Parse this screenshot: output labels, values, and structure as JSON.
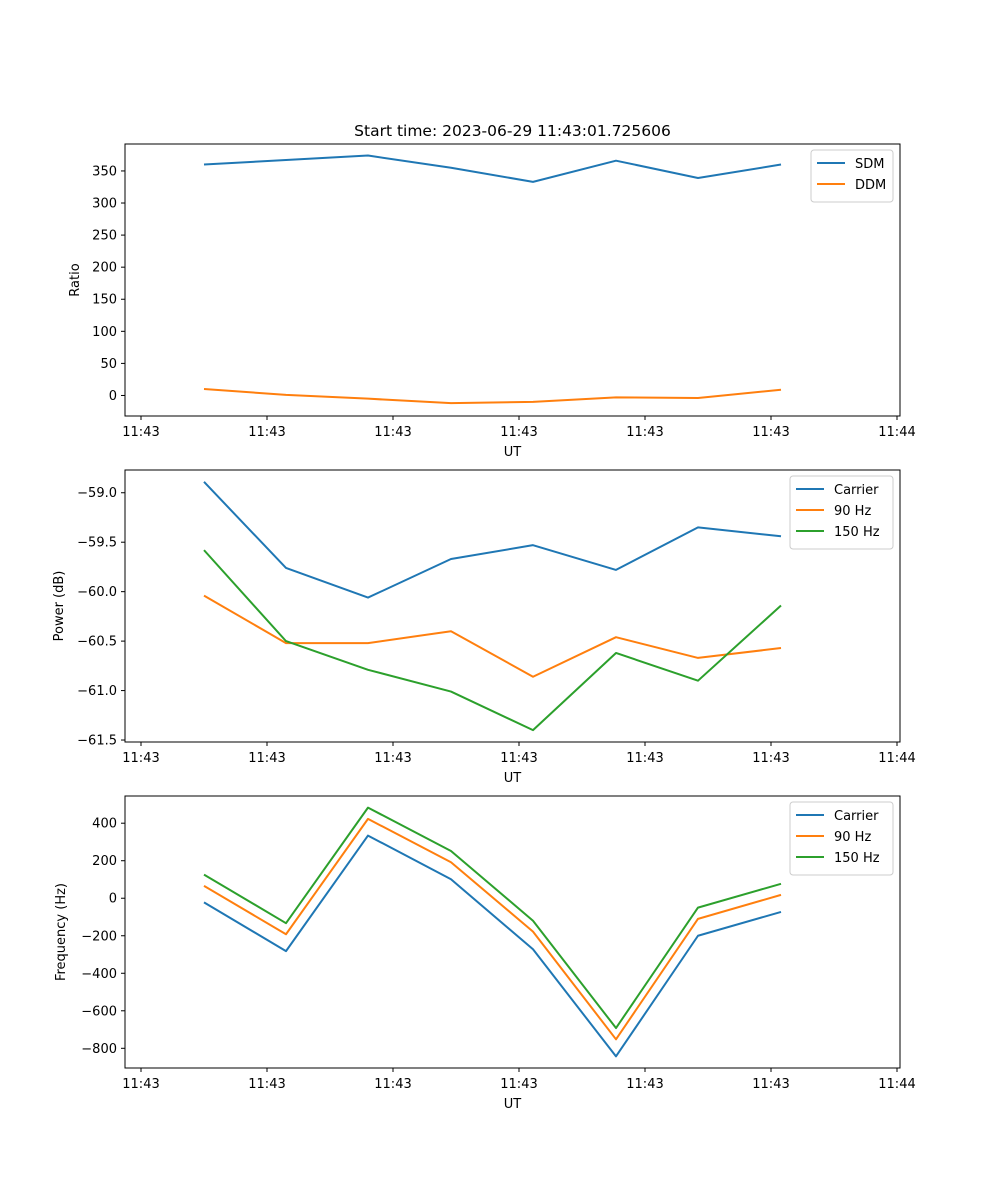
{
  "figure": {
    "title": "Start time: 2023-06-29 11:43:01.725606"
  },
  "colors": {
    "blue": "#1f77b4",
    "orange": "#ff7f0e",
    "green": "#2ca02c"
  },
  "chart_data": [
    {
      "type": "line",
      "title": "Start time: 2023-06-29 11:43:01.725606",
      "xlabel": "UT",
      "ylabel": "Ratio",
      "x_tick_labels": [
        "11:43",
        "11:43",
        "11:43",
        "11:43",
        "11:43",
        "11:43",
        "11:43",
        "11:44"
      ],
      "x_points": 8,
      "ylim": [
        -32,
        392
      ],
      "yticks": [
        0,
        50,
        100,
        150,
        200,
        250,
        300,
        350
      ],
      "grid": false,
      "legend_position": "upper right",
      "series": [
        {
          "name": "SDM",
          "color": "blue",
          "values": [
            360,
            367,
            374,
            355,
            333,
            366,
            339,
            360
          ]
        },
        {
          "name": "DDM",
          "color": "orange",
          "values": [
            10,
            1,
            -5,
            -12,
            -10,
            -3,
            -4,
            9
          ]
        }
      ]
    },
    {
      "type": "line",
      "title": "",
      "xlabel": "UT",
      "ylabel": "Power (dB)",
      "x_tick_labels": [
        "11:43",
        "11:43",
        "11:43",
        "11:43",
        "11:43",
        "11:43",
        "11:43",
        "11:44"
      ],
      "x_points": 8,
      "ylim": [
        -61.52,
        -58.77
      ],
      "yticks": [
        -59.0,
        -59.5,
        -60.0,
        -60.5,
        -61.0,
        -61.5
      ],
      "ytick_labels": [
        "−59.0",
        "−59.5",
        "−60.0",
        "−60.5",
        "−61.0",
        "−61.5"
      ],
      "grid": false,
      "legend_position": "upper right",
      "series": [
        {
          "name": "Carrier",
          "color": "blue",
          "values": [
            -58.89,
            -59.76,
            -60.06,
            -59.67,
            -59.53,
            -59.78,
            -59.35,
            -59.44
          ]
        },
        {
          "name": "90 Hz",
          "color": "orange",
          "values": [
            -60.04,
            -60.52,
            -60.52,
            -60.4,
            -60.86,
            -60.46,
            -60.67,
            -60.57
          ]
        },
        {
          "name": "150 Hz",
          "color": "green",
          "values": [
            -59.58,
            -60.5,
            -60.79,
            -61.01,
            -61.4,
            -60.62,
            -60.9,
            -60.14
          ]
        }
      ]
    },
    {
      "type": "line",
      "title": "",
      "xlabel": "UT",
      "ylabel": "Frequency (Hz)",
      "x_tick_labels": [
        "11:43",
        "11:43",
        "11:43",
        "11:43",
        "11:43",
        "11:43",
        "11:43",
        "11:44"
      ],
      "x_points": 8,
      "ylim": [
        -905,
        545
      ],
      "yticks": [
        400,
        200,
        0,
        -200,
        -400,
        -600,
        -800
      ],
      "ytick_labels": [
        "400",
        "200",
        "0",
        "−200",
        "−400",
        "−600",
        "−800"
      ],
      "grid": false,
      "legend_position": "upper right",
      "series": [
        {
          "name": "Carrier",
          "color": "blue",
          "values": [
            -22,
            -282,
            334,
            101,
            -272,
            -843,
            -200,
            -73
          ]
        },
        {
          "name": "90 Hz",
          "color": "orange",
          "values": [
            66,
            -192,
            423,
            192,
            -178,
            -752,
            -110,
            18
          ]
        },
        {
          "name": "150 Hz",
          "color": "green",
          "values": [
            126,
            -133,
            483,
            252,
            -120,
            -692,
            -50,
            77
          ]
        }
      ]
    }
  ]
}
